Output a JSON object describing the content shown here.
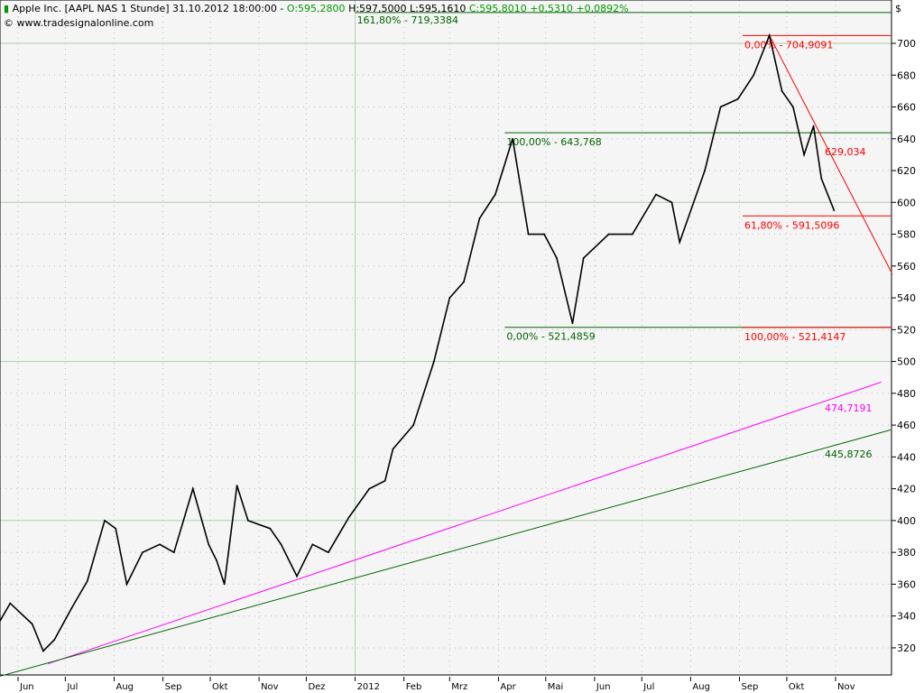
{
  "header": {
    "title": "Apple Inc. [AAPL NAS  1 Stunde] 31.10.2012 18:00:00 - ",
    "open": "O:595,2800",
    "high": "H:597,5000",
    "low": "L:595,1610",
    "close": "C:595,8010 +0,5310 +0,0892%",
    "copyright": "© www.tradesignalonline.com",
    "currency": "$"
  },
  "colors": {
    "price": "#000000",
    "fib_up": "#006400",
    "fib_down": "#ff0000",
    "trend_magenta": "#ff00ff",
    "trend_green": "#006400",
    "grid": "#b0ccb0",
    "background": "#f5f5f5"
  },
  "chart_data": {
    "type": "line",
    "ylim": [
      302,
      724
    ],
    "yticks": [
      320,
      340,
      360,
      380,
      400,
      420,
      440,
      460,
      480,
      500,
      520,
      540,
      560,
      580,
      600,
      620,
      640,
      660,
      680,
      700
    ],
    "xticks": [
      {
        "label": "Jun",
        "date": "2011-06-01"
      },
      {
        "label": "Jul",
        "date": "2011-07-01"
      },
      {
        "label": "Aug",
        "date": "2011-08-01"
      },
      {
        "label": "Sep",
        "date": "2011-09-01"
      },
      {
        "label": "Okt",
        "date": "2011-10-01"
      },
      {
        "label": "Nov",
        "date": "2011-11-01"
      },
      {
        "label": "Dez",
        "date": "2011-12-01"
      },
      {
        "label": "2012",
        "date": "2012-01-01"
      },
      {
        "label": "Feb",
        "date": "2012-02-01"
      },
      {
        "label": "Mrz",
        "date": "2012-03-01"
      },
      {
        "label": "Apr",
        "date": "2012-04-01"
      },
      {
        "label": "Mai",
        "date": "2012-05-01"
      },
      {
        "label": "Jun",
        "date": "2012-06-01"
      },
      {
        "label": "Jul",
        "date": "2012-07-01"
      },
      {
        "label": "Aug",
        "date": "2012-08-01"
      },
      {
        "label": "Sep",
        "date": "2012-09-01"
      },
      {
        "label": "Okt",
        "date": "2012-10-01"
      },
      {
        "label": "Nov",
        "date": "2012-11-01"
      }
    ],
    "series": [
      {
        "points": [
          [
            "2011-05-20",
            336
          ],
          [
            "2011-05-27",
            348
          ],
          [
            "2011-06-10",
            335
          ],
          [
            "2011-06-17",
            318
          ],
          [
            "2011-06-24",
            325
          ],
          [
            "2011-07-05",
            345
          ],
          [
            "2011-07-15",
            362
          ],
          [
            "2011-07-26",
            400
          ],
          [
            "2011-08-02",
            395
          ],
          [
            "2011-08-09",
            360
          ],
          [
            "2011-08-19",
            380
          ],
          [
            "2011-08-30",
            385
          ],
          [
            "2011-09-08",
            380
          ],
          [
            "2011-09-20",
            420
          ],
          [
            "2011-09-30",
            385
          ],
          [
            "2011-10-05",
            375
          ],
          [
            "2011-10-10",
            360
          ],
          [
            "2011-10-18",
            422
          ],
          [
            "2011-10-25",
            400
          ],
          [
            "2011-11-08",
            395
          ],
          [
            "2011-11-15",
            385
          ],
          [
            "2011-11-25",
            365
          ],
          [
            "2011-12-05",
            385
          ],
          [
            "2011-12-15",
            380
          ],
          [
            "2011-12-28",
            402
          ],
          [
            "2012-01-10",
            420
          ],
          [
            "2012-01-20",
            425
          ],
          [
            "2012-01-25",
            445
          ],
          [
            "2012-02-07",
            460
          ],
          [
            "2012-02-20",
            500
          ],
          [
            "2012-03-01",
            540
          ],
          [
            "2012-03-10",
            550
          ],
          [
            "2012-03-20",
            590
          ],
          [
            "2012-03-30",
            605
          ],
          [
            "2012-04-10",
            640
          ],
          [
            "2012-04-20",
            580
          ],
          [
            "2012-04-30",
            580
          ],
          [
            "2012-05-08",
            565
          ],
          [
            "2012-05-18",
            524
          ],
          [
            "2012-05-25",
            565
          ],
          [
            "2012-06-10",
            580
          ],
          [
            "2012-06-25",
            580
          ],
          [
            "2012-07-10",
            605
          ],
          [
            "2012-07-20",
            600
          ],
          [
            "2012-07-25",
            575
          ],
          [
            "2012-08-10",
            620
          ],
          [
            "2012-08-20",
            660
          ],
          [
            "2012-08-31",
            665
          ],
          [
            "2012-09-10",
            680
          ],
          [
            "2012-09-20",
            705
          ],
          [
            "2012-09-28",
            670
          ],
          [
            "2012-10-05",
            660
          ],
          [
            "2012-10-12",
            630
          ],
          [
            "2012-10-18",
            648
          ],
          [
            "2012-10-23",
            615
          ],
          [
            "2012-10-31",
            595
          ]
        ]
      }
    ],
    "annotations": [
      {
        "label": "161,80% - 719,3384",
        "value": 719.3384,
        "from": "2012-01-01",
        "color": "#006400"
      },
      {
        "label": "100,00% - 643,768",
        "value": 643.768,
        "from": "2012-04-05",
        "color": "#006400"
      },
      {
        "label": "0,00% - 521,4859",
        "value": 521.4859,
        "from": "2012-04-05",
        "color": "#006400"
      },
      {
        "label": "0,00% - 704,9091",
        "value": 704.9091,
        "from": "2012-09-03",
        "color": "#ff0000"
      },
      {
        "label": "61,80% - 591,5096",
        "value": 591.5096,
        "from": "2012-09-03",
        "color": "#ff0000"
      },
      {
        "label": "100,00% - 521,4147",
        "value": 521.4147,
        "from": "2012-09-03",
        "color": "#ff0000"
      }
    ],
    "trendlines": [
      {
        "label": "629,034",
        "from": [
          "2012-09-20",
          705
        ],
        "to": [
          "2012-11-37",
          555
        ],
        "color": "#ff0000"
      },
      {
        "label": "474,7191",
        "from": [
          "2011-06-20",
          310
        ],
        "to": [
          "2012-11-30",
          487
        ],
        "color": "#ff00ff"
      },
      {
        "label": "445,8726",
        "from": [
          "2011-05-20",
          302
        ],
        "to": [
          "2012-12-06",
          457
        ],
        "color": "#006400"
      }
    ]
  }
}
